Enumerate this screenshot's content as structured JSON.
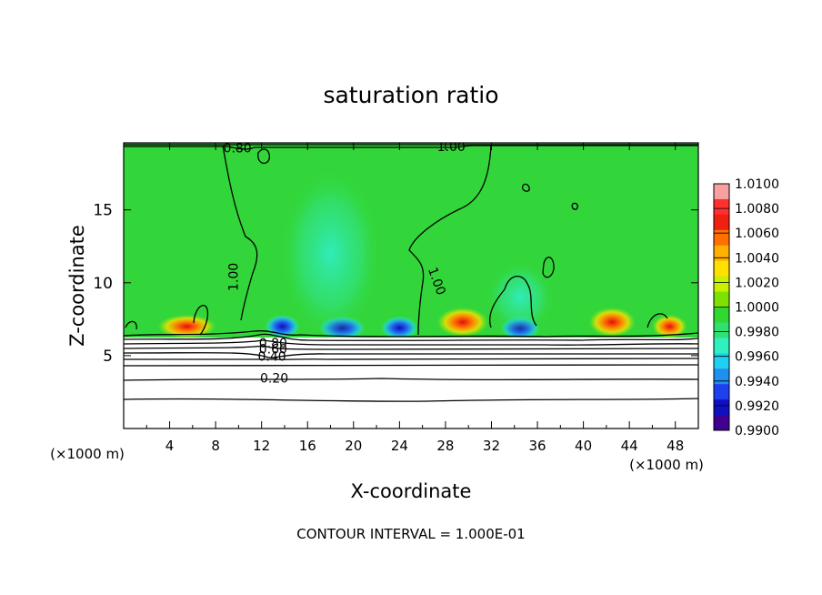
{
  "chart_data": {
    "type": "heatmap",
    "title": "saturation ratio",
    "xlabel": "X-coordinate",
    "ylabel": "Z-coordinate",
    "x_unit": "(×1000 m)",
    "y_unit": "(×1000 m)",
    "xlim": [
      0,
      50
    ],
    "ylim": [
      0,
      19.6
    ],
    "x_ticks": [
      4,
      8,
      12,
      16,
      20,
      24,
      28,
      32,
      36,
      40,
      44,
      48
    ],
    "y_ticks": [
      5,
      10,
      15
    ],
    "footer": "CONTOUR INTERVAL = 1.000E-01",
    "colorbar": {
      "ticks": [
        "1.0100",
        "1.0080",
        "1.0060",
        "1.0040",
        "1.0020",
        "1.0000",
        "0.9980",
        "0.9960",
        "0.9940",
        "0.9920",
        "0.9900"
      ],
      "colors": [
        "#f7a0a0",
        "#ff3030",
        "#f02010",
        "#ff7000",
        "#ffb000",
        "#ffe000",
        "#c8f000",
        "#80e000",
        "#30d830",
        "#30e070",
        "#30f0c0",
        "#20d0f0",
        "#2090f0",
        "#2040f0",
        "#1010c0",
        "#400090"
      ]
    },
    "contour_labels": [
      {
        "text": "1.00",
        "x": 9.6,
        "z": 10.4,
        "rotate": -90
      },
      {
        "text": "1.00",
        "x": 28.5,
        "z": 19.3,
        "rotate": 0
      },
      {
        "text": "1.00",
        "x": 27.2,
        "z": 10.1,
        "rotate": 70
      },
      {
        "text": "0.80",
        "x": 13.0,
        "z": 5.8,
        "rotate": 0
      },
      {
        "text": "0.60",
        "x": 13.0,
        "z": 5.4,
        "rotate": 0
      },
      {
        "text": "0.40",
        "x": 12.9,
        "z": 4.9,
        "rotate": 0
      },
      {
        "text": "0.20",
        "x": 13.1,
        "z": 3.4,
        "rotate": 0
      },
      {
        "text": "0.80",
        "x": 9.9,
        "z": 19.2,
        "rotate": 0
      }
    ],
    "field_features": [
      {
        "kind": "warm",
        "x": 29.5,
        "z": 7.3,
        "sx": 2.2,
        "sz": 1.0
      },
      {
        "kind": "warm",
        "x": 42.5,
        "z": 7.3,
        "sx": 2.0,
        "sz": 1.0
      },
      {
        "kind": "warm",
        "x": 47.5,
        "z": 7.0,
        "sx": 1.5,
        "sz": 0.8
      },
      {
        "kind": "warm",
        "x": 5.5,
        "z": 7.0,
        "sx": 2.5,
        "sz": 0.8
      },
      {
        "kind": "cold",
        "x": 13.8,
        "z": 7.0,
        "sx": 1.5,
        "sz": 0.8
      },
      {
        "kind": "cold",
        "x": 19.0,
        "z": 6.9,
        "sx": 2.0,
        "sz": 0.8
      },
      {
        "kind": "cold",
        "x": 24.0,
        "z": 6.9,
        "sx": 1.6,
        "sz": 0.8
      },
      {
        "kind": "cold",
        "x": 34.5,
        "z": 6.9,
        "sx": 1.7,
        "sz": 0.8
      },
      {
        "kind": "cyan",
        "x": 18.0,
        "z": 12.0,
        "sx": 4.5,
        "sz": 6.0
      },
      {
        "kind": "cyan",
        "x": 34.5,
        "z": 9.0,
        "sx": 3.0,
        "sz": 2.5
      }
    ]
  }
}
